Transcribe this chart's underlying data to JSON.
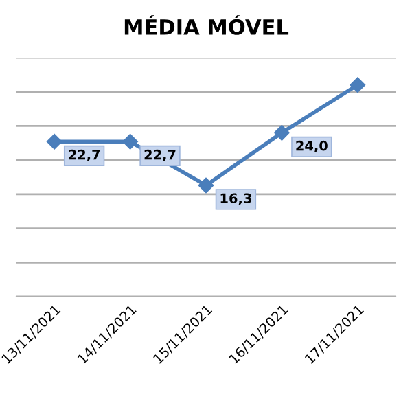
{
  "chart_data": {
    "type": "line",
    "title": "MÉDIA MÓVEL",
    "categories": [
      "13/11/2021",
      "14/11/2021",
      "15/11/2021",
      "16/11/2021",
      "17/11/2021"
    ],
    "series": [
      {
        "color": "#4a7ebb",
        "values": [
          22.7,
          22.7,
          16.3,
          24.0,
          31.0
        ],
        "value_labels": [
          "22,7",
          "22,7",
          "16,3",
          "24,0",
          null
        ]
      }
    ],
    "ylim": [
      0,
      35
    ],
    "yticks": [
      {
        "value": 0,
        "label": null
      },
      {
        "value": 5,
        "label": null
      },
      {
        "value": 10,
        "label": null
      },
      {
        "value": 15,
        "label": null
      },
      {
        "value": 20,
        "label": null
      },
      {
        "value": 25,
        "label": null
      },
      {
        "value": 30,
        "label": null
      },
      {
        "value": 35,
        "label": null
      }
    ],
    "grid": "y",
    "tick_labels": "x",
    "marker": "diamond",
    "line_style": "solid"
  }
}
